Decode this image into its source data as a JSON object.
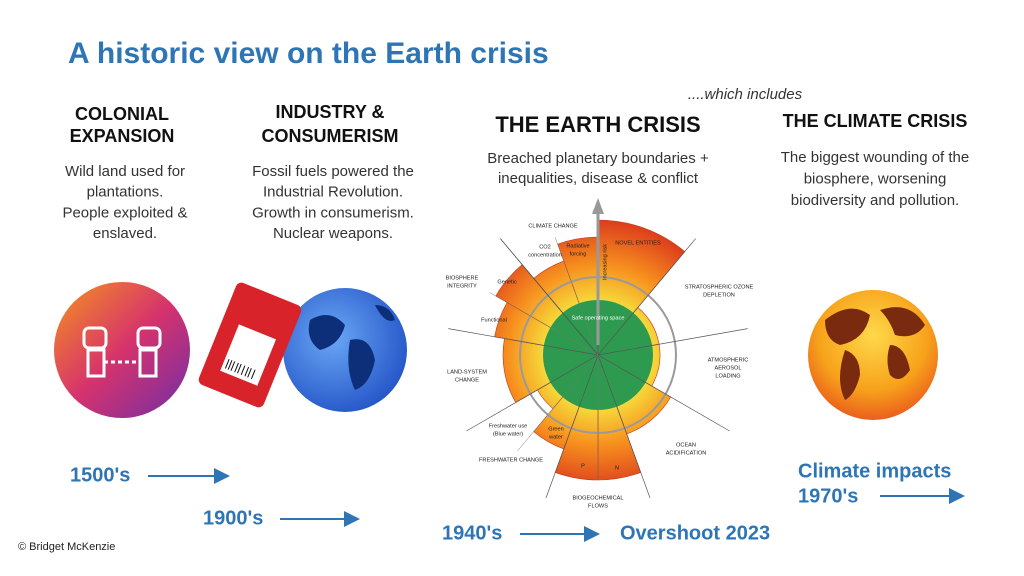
{
  "title": "A historic view on the Earth crisis",
  "note": "....which includes",
  "columns": [
    {
      "heading": [
        "COLONIAL",
        "EXPANSION"
      ],
      "body": [
        "Wild land used for",
        "plantations.",
        "People exploited &",
        "enslaved."
      ]
    },
    {
      "heading": [
        "INDUSTRY &",
        "CONSUMERISM"
      ],
      "body": [
        "Fossil fuels powered the",
        "Industrial Revolution.",
        "Growth in consumerism.",
        "Nuclear weapons."
      ]
    },
    {
      "heading": [
        "THE EARTH CRISIS"
      ],
      "body": [
        "Breached planetary boundaries  +",
        "inequalities, disease & conflict"
      ]
    },
    {
      "heading": [
        "THE CLIMATE CRISIS"
      ],
      "body": [
        "The biggest wounding of the",
        "biosphere, worsening",
        "biodiversity and pollution."
      ]
    }
  ],
  "diagram": {
    "climate_change": [
      "CLIMATE CHANGE"
    ],
    "co2": [
      "CO2",
      "concentration"
    ],
    "radiative": [
      "Radiative",
      "forcing"
    ],
    "novel_entities": [
      "NOVEL ENTITIES"
    ],
    "ozone": [
      "STRATOSPHERIC OZONE",
      "DEPLETION"
    ],
    "aerosol": [
      "ATMOSPHERIC",
      "AEROSOL",
      "LOADING"
    ],
    "ocean": [
      "OCEAN",
      "ACIDIFICATION"
    ],
    "biogeochemical": [
      "BIOGEOCHEMICAL",
      "FLOWS"
    ],
    "p": [
      "P"
    ],
    "n": [
      "N"
    ],
    "freshwater_change": [
      "FRESHWATER CHANGE"
    ],
    "blue_water": [
      "Freshwater use",
      "(Blue water)"
    ],
    "green_water": [
      "Green",
      "water"
    ],
    "land_system": [
      "LAND-SYSTEM",
      "CHANGE"
    ],
    "functional": [
      "Functional"
    ],
    "genetic": [
      "Genetic"
    ],
    "biosphere": [
      "BIOSPHERE",
      "INTEGRITY"
    ],
    "safe_space": [
      "Safe operating space"
    ],
    "increasing_risk": [
      "Increasing risk"
    ]
  },
  "timeline": [
    "1500's",
    "1900's",
    "1940's",
    "Overshoot 2023",
    "Climate impacts",
    "1970's"
  ],
  "credit": "© Bridget McKenzie"
}
